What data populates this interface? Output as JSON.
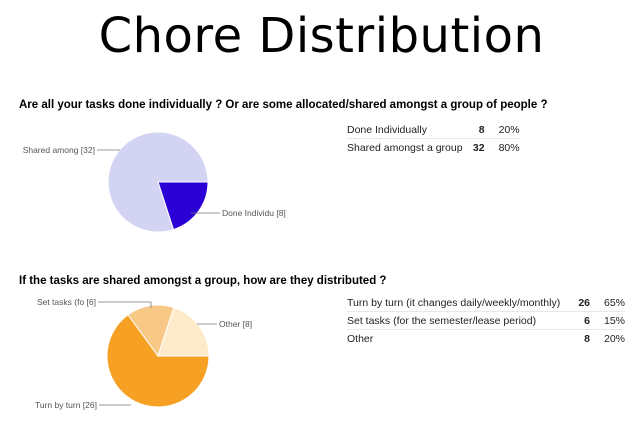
{
  "slide": {
    "title": "Chore Distribution"
  },
  "chart_data": [
    {
      "type": "pie",
      "title": "Are all your tasks done individually ? Or are some allocated/shared amongst a group of people ?",
      "slices": [
        {
          "label": "Done Individually",
          "callout": "Done Individu [8]",
          "value": 8,
          "percent": "20%",
          "color": "#2a00d6"
        },
        {
          "label": "Shared amongst a group",
          "callout": "Shared among [32]",
          "value": 32,
          "percent": "80%",
          "color": "#d3d3f4"
        }
      ]
    },
    {
      "type": "pie",
      "title": "If the tasks are shared amongst a group, how are they distributed ?",
      "slices": [
        {
          "label": "Turn by turn (it changes daily/weekly/monthly)",
          "callout": "Turn by turn [26]",
          "value": 26,
          "percent": "65%",
          "color": "#f7a124"
        },
        {
          "label": "Set tasks (for the semester/lease period)",
          "callout": "Set tasks (fo [6]",
          "value": 6,
          "percent": "15%",
          "color": "#f8c887"
        },
        {
          "label": "Other",
          "callout": "Other [8]",
          "value": 8,
          "percent": "20%",
          "color": "#fdebc9"
        }
      ]
    }
  ]
}
